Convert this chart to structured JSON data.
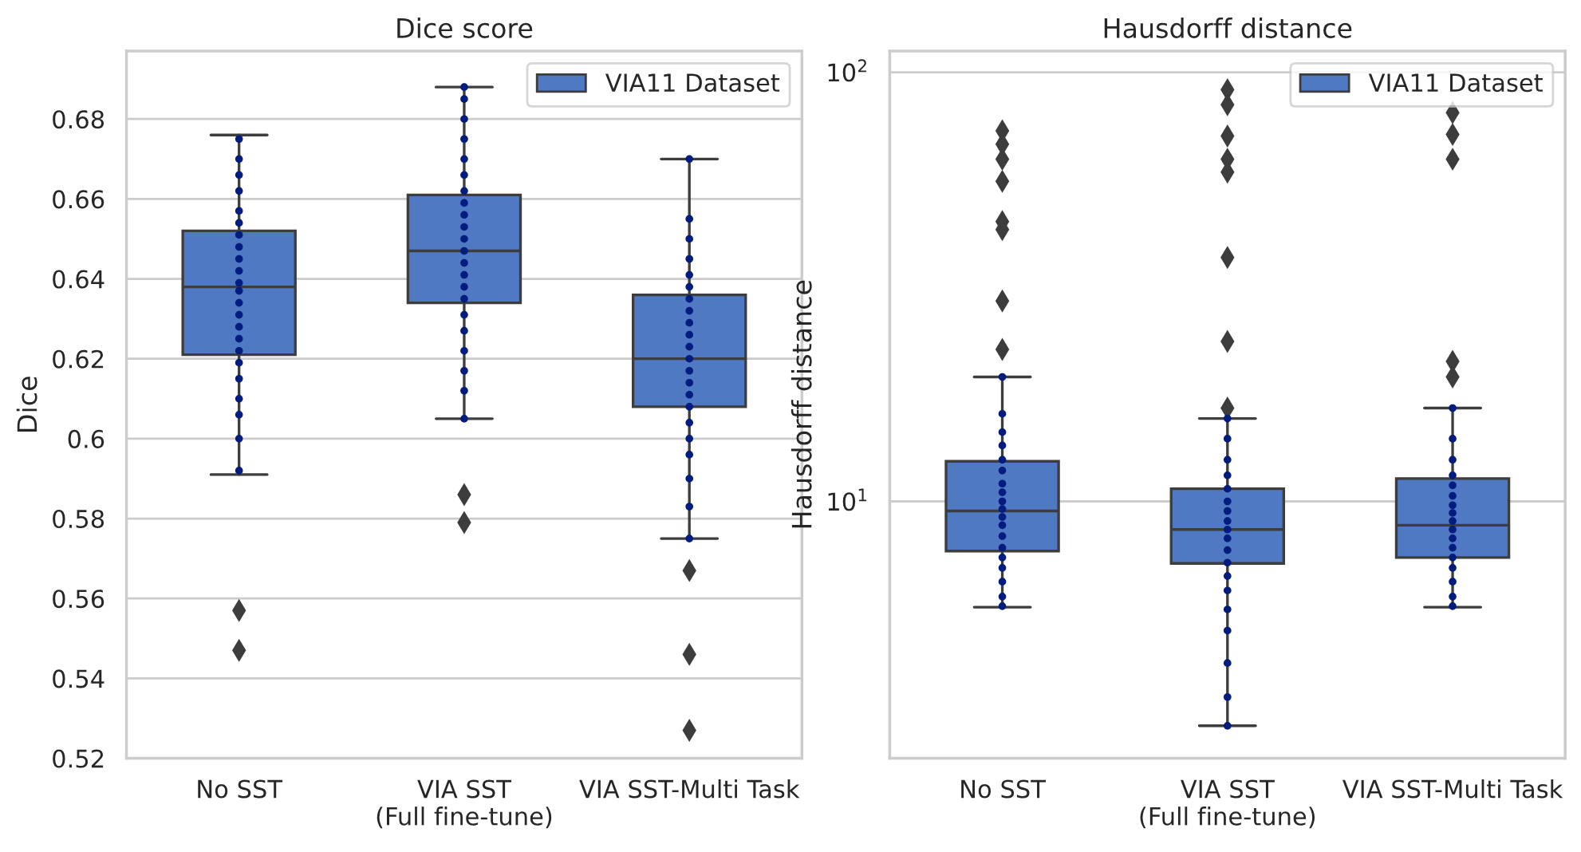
{
  "chart_data": [
    {
      "type": "box",
      "title": "Dice score",
      "ylabel": "Dice",
      "categories": [
        "No SST",
        "VIA SST\n(Full fine-tune)",
        "VIA SST-Multi Task"
      ],
      "ylim": [
        0.52,
        0.697
      ],
      "yticks": [
        0.52,
        0.54,
        0.56,
        0.58,
        0.6,
        0.62,
        0.64,
        0.66,
        0.68
      ],
      "grid": "y",
      "legend": "top right",
      "series": [
        {
          "name": "VIA11 Dataset",
          "color": "#5079c4",
          "boxes": [
            {
              "low": 0.591,
              "q1": 0.621,
              "median": 0.638,
              "q3": 0.652,
              "high": 0.676,
              "outliers": [
                0.557,
                0.547
              ]
            },
            {
              "low": 0.605,
              "q1": 0.634,
              "median": 0.647,
              "q3": 0.661,
              "high": 0.688,
              "outliers": [
                0.586,
                0.579
              ]
            },
            {
              "low": 0.575,
              "q1": 0.608,
              "median": 0.62,
              "q3": 0.636,
              "high": 0.67,
              "outliers": [
                0.567,
                0.546,
                0.527
              ]
            }
          ]
        },
        {
          "type": "scatter",
          "color": "#001c7f",
          "x": [
            "No SST",
            "No SST",
            "No SST",
            "No SST",
            "No SST",
            "No SST",
            "No SST",
            "No SST",
            "No SST",
            "No SST",
            "No SST",
            "No SST",
            "No SST",
            "No SST",
            "No SST",
            "No SST",
            "No SST",
            "No SST",
            "No SST",
            "No SST",
            "No SST",
            "No SST",
            "No SST",
            "VIA SST\n(Full fine-tune)",
            "VIA SST\n(Full fine-tune)",
            "VIA SST\n(Full fine-tune)",
            "VIA SST\n(Full fine-tune)",
            "VIA SST\n(Full fine-tune)",
            "VIA SST\n(Full fine-tune)",
            "VIA SST\n(Full fine-tune)",
            "VIA SST\n(Full fine-tune)",
            "VIA SST\n(Full fine-tune)",
            "VIA SST\n(Full fine-tune)",
            "VIA SST\n(Full fine-tune)",
            "VIA SST\n(Full fine-tune)",
            "VIA SST\n(Full fine-tune)",
            "VIA SST\n(Full fine-tune)",
            "VIA SST\n(Full fine-tune)",
            "VIA SST\n(Full fine-tune)",
            "VIA SST\n(Full fine-tune)",
            "VIA SST\n(Full fine-tune)",
            "VIA SST\n(Full fine-tune)",
            "VIA SST\n(Full fine-tune)",
            "VIA SST\n(Full fine-tune)",
            "VIA SST\n(Full fine-tune)",
            "VIA SST-Multi Task",
            "VIA SST-Multi Task",
            "VIA SST-Multi Task",
            "VIA SST-Multi Task",
            "VIA SST-Multi Task",
            "VIA SST-Multi Task",
            "VIA SST-Multi Task",
            "VIA SST-Multi Task",
            "VIA SST-Multi Task",
            "VIA SST-Multi Task",
            "VIA SST-Multi Task",
            "VIA SST-Multi Task",
            "VIA SST-Multi Task",
            "VIA SST-Multi Task",
            "VIA SST-Multi Task",
            "VIA SST-Multi Task",
            "VIA SST-Multi Task",
            "VIA SST-Multi Task",
            "VIA SST-Multi Task",
            "VIA SST-Multi Task",
            "VIA SST-Multi Task",
            "VIA SST-Multi Task"
          ],
          "values": [
            0.592,
            0.6,
            0.606,
            0.61,
            0.615,
            0.619,
            0.622,
            0.625,
            0.628,
            0.631,
            0.634,
            0.637,
            0.639,
            0.642,
            0.645,
            0.648,
            0.651,
            0.654,
            0.657,
            0.662,
            0.666,
            0.67,
            0.675,
            0.605,
            0.612,
            0.617,
            0.622,
            0.627,
            0.631,
            0.635,
            0.638,
            0.641,
            0.644,
            0.647,
            0.65,
            0.653,
            0.656,
            0.659,
            0.662,
            0.666,
            0.67,
            0.675,
            0.68,
            0.685,
            0.688,
            0.575,
            0.583,
            0.59,
            0.596,
            0.6,
            0.604,
            0.608,
            0.611,
            0.614,
            0.617,
            0.62,
            0.623,
            0.626,
            0.629,
            0.632,
            0.635,
            0.638,
            0.641,
            0.645,
            0.65,
            0.655,
            0.67
          ]
        }
      ]
    },
    {
      "type": "box",
      "title": "Hausdorff distance",
      "ylabel": "Hausdorff distance",
      "categories": [
        "No SST",
        "VIA SST\n(Full fine-tune)",
        "VIA SST-Multi Task"
      ],
      "log": true,
      "ylim": [
        2.52,
        112
      ],
      "yticks": [
        {
          "value": 10,
          "label": "10$^{1}$"
        },
        {
          "value": 100,
          "label": "10$^{2}$"
        }
      ],
      "grid": "y",
      "legend": "top right",
      "series": [
        {
          "name": "VIA11 Dataset",
          "color": "#5079c4",
          "boxes": [
            {
              "low": 5.67,
              "q1": 7.66,
              "median": 9.5,
              "q3": 12.4,
              "high": 19.5,
              "outliers": [
                22.6,
                29.3,
                43,
                44.9,
                55.7,
                62.7,
                68,
                73
              ]
            },
            {
              "low": 3.0,
              "q1": 7.17,
              "median": 8.6,
              "q3": 10.7,
              "high": 15.6,
              "outliers": [
                16.5,
                23.6,
                37,
                58.5,
                62.7,
                71,
                84,
                91
              ]
            },
            {
              "low": 5.67,
              "q1": 7.4,
              "median": 8.8,
              "q3": 11.3,
              "high": 16.5,
              "outliers": [
                19.5,
                21.2,
                62.7,
                71.6,
                80.5
              ]
            }
          ]
        },
        {
          "type": "scatter",
          "color": "#001c7f",
          "x": [
            "No SST",
            "No SST",
            "No SST",
            "No SST",
            "No SST",
            "No SST",
            "No SST",
            "No SST",
            "No SST",
            "No SST",
            "No SST",
            "No SST",
            "No SST",
            "No SST",
            "No SST",
            "No SST",
            "No SST",
            "No SST",
            "No SST",
            "VIA SST\n(Full fine-tune)",
            "VIA SST\n(Full fine-tune)",
            "VIA SST\n(Full fine-tune)",
            "VIA SST\n(Full fine-tune)",
            "VIA SST\n(Full fine-tune)",
            "VIA SST\n(Full fine-tune)",
            "VIA SST\n(Full fine-tune)",
            "VIA SST\n(Full fine-tune)",
            "VIA SST\n(Full fine-tune)",
            "VIA SST\n(Full fine-tune)",
            "VIA SST\n(Full fine-tune)",
            "VIA SST\n(Full fine-tune)",
            "VIA SST\n(Full fine-tune)",
            "VIA SST\n(Full fine-tune)",
            "VIA SST\n(Full fine-tune)",
            "VIA SST\n(Full fine-tune)",
            "VIA SST\n(Full fine-tune)",
            "VIA SST\n(Full fine-tune)",
            "VIA SST\n(Full fine-tune)",
            "VIA SST-Multi Task",
            "VIA SST-Multi Task",
            "VIA SST-Multi Task",
            "VIA SST-Multi Task",
            "VIA SST-Multi Task",
            "VIA SST-Multi Task",
            "VIA SST-Multi Task",
            "VIA SST-Multi Task",
            "VIA SST-Multi Task",
            "VIA SST-Multi Task",
            "VIA SST-Multi Task",
            "VIA SST-Multi Task",
            "VIA SST-Multi Task",
            "VIA SST-Multi Task",
            "VIA SST-Multi Task",
            "VIA SST-Multi Task",
            "VIA SST-Multi Task"
          ],
          "values": [
            5.7,
            6.0,
            6.5,
            7.0,
            7.4,
            7.8,
            8.3,
            8.8,
            9.2,
            9.6,
            10.0,
            10.5,
            11.0,
            11.8,
            12.5,
            13.5,
            14.5,
            16,
            19.5,
            3.0,
            3.5,
            4.2,
            5.0,
            5.6,
            6.2,
            6.7,
            7.2,
            7.7,
            8.2,
            8.6,
            9.0,
            9.5,
            10.0,
            10.7,
            11.5,
            12.5,
            14,
            15.6,
            5.7,
            6.0,
            6.5,
            7.0,
            7.4,
            7.8,
            8.2,
            8.6,
            9.0,
            9.4,
            9.8,
            10.3,
            10.9,
            11.5,
            12.5,
            14,
            16.5
          ]
        }
      ]
    }
  ]
}
